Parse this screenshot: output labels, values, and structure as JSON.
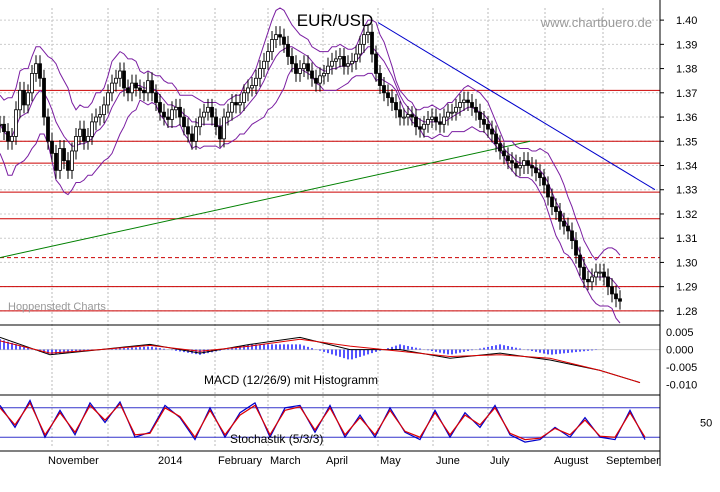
{
  "chart_data": [
    {
      "type": "candlestick",
      "title": "EUR/USD",
      "source": "www.chartbuero.de",
      "watermark": "Hoppenstedt Charts",
      "ylim": [
        1.275,
        1.405
      ],
      "y_ticks": [
        1.28,
        1.29,
        1.3,
        1.31,
        1.32,
        1.33,
        1.34,
        1.35,
        1.36,
        1.37,
        1.38,
        1.39,
        1.4
      ],
      "x_ticks": [
        "November",
        "2014",
        "February",
        "March",
        "April",
        "May",
        "June",
        "July",
        "August",
        "September"
      ],
      "grid": true,
      "price_x": [
        0,
        4,
        8,
        12,
        16,
        20,
        24,
        28,
        32,
        36,
        40,
        44,
        48,
        52,
        56,
        60,
        64,
        68,
        72,
        76,
        80,
        84,
        88,
        92,
        96,
        100,
        104,
        108,
        112,
        116,
        120,
        124,
        128,
        132,
        136,
        140,
        144,
        148,
        152,
        156,
        160,
        164,
        168,
        172,
        176,
        180,
        184,
        188,
        192,
        196,
        200,
        204,
        208,
        212,
        216,
        220,
        224,
        228,
        232,
        236,
        240,
        244,
        248,
        252,
        256,
        260,
        264,
        268,
        272,
        276,
        280,
        284,
        288,
        292,
        296,
        300,
        304,
        308,
        312,
        316,
        320,
        324,
        328,
        332,
        336,
        340,
        344,
        348,
        352,
        356,
        360,
        364,
        368,
        372,
        376,
        380,
        384,
        388,
        392,
        396,
        400,
        404,
        408,
        412,
        416,
        420,
        424,
        428,
        432,
        436,
        440,
        444,
        448,
        452,
        456,
        460,
        464,
        468,
        472,
        476,
        480,
        484,
        488,
        492,
        496,
        500,
        504,
        508,
        512,
        516,
        520,
        524,
        528,
        532,
        536,
        540,
        544,
        548,
        552,
        556,
        560,
        564,
        568,
        572,
        576,
        580,
        584,
        588,
        592,
        596,
        600,
        604,
        608,
        612,
        616,
        620,
        624,
        628,
        632,
        636,
        640,
        644
      ],
      "close": [
        1.357,
        1.354,
        1.35,
        1.352,
        1.363,
        1.371,
        1.365,
        1.37,
        1.378,
        1.382,
        1.376,
        1.36,
        1.35,
        1.345,
        1.338,
        1.347,
        1.342,
        1.338,
        1.346,
        1.352,
        1.355,
        1.35,
        1.352,
        1.358,
        1.36,
        1.361,
        1.365,
        1.37,
        1.374,
        1.376,
        1.379,
        1.372,
        1.37,
        1.374,
        1.372,
        1.371,
        1.37,
        1.375,
        1.37,
        1.366,
        1.362,
        1.36,
        1.359,
        1.363,
        1.364,
        1.36,
        1.356,
        1.353,
        1.35,
        1.356,
        1.36,
        1.362,
        1.364,
        1.36,
        1.356,
        1.351,
        1.36,
        1.362,
        1.366,
        1.365,
        1.366,
        1.37,
        1.372,
        1.373,
        1.376,
        1.38,
        1.383,
        1.387,
        1.392,
        1.394,
        1.393,
        1.39,
        1.385,
        1.382,
        1.378,
        1.38,
        1.382,
        1.379,
        1.376,
        1.374,
        1.377,
        1.378,
        1.381,
        1.383,
        1.384,
        1.385,
        1.381,
        1.382,
        1.383,
        1.386,
        1.39,
        1.394,
        1.395,
        1.386,
        1.378,
        1.373,
        1.37,
        1.368,
        1.366,
        1.363,
        1.36,
        1.36,
        1.361,
        1.36,
        1.356,
        1.355,
        1.357,
        1.359,
        1.36,
        1.358,
        1.357,
        1.36,
        1.362,
        1.362,
        1.364,
        1.366,
        1.367,
        1.366,
        1.364,
        1.362,
        1.359,
        1.357,
        1.355,
        1.353,
        1.349,
        1.346,
        1.344,
        1.342,
        1.341,
        1.339,
        1.34,
        1.342,
        1.34,
        1.339,
        1.337,
        1.335,
        1.332,
        1.327,
        1.323,
        1.321,
        1.317,
        1.315,
        1.313,
        1.309,
        1.303,
        1.298,
        1.293,
        1.292,
        1.294,
        1.296,
        1.296,
        1.294,
        1.29,
        1.287,
        1.285,
        1.284
      ],
      "bollinger_upper": [
        1.369,
        1.367,
        1.368,
        1.368,
        1.372,
        1.379,
        1.38,
        1.38,
        1.385,
        1.389,
        1.389,
        1.387,
        1.385,
        1.384,
        1.382,
        1.378,
        1.375,
        1.372,
        1.366,
        1.363,
        1.365,
        1.364,
        1.364,
        1.366,
        1.37,
        1.37,
        1.372,
        1.377,
        1.383,
        1.385,
        1.387,
        1.386,
        1.384,
        1.384,
        1.383,
        1.379,
        1.378,
        1.379,
        1.378,
        1.377,
        1.377,
        1.375,
        1.374,
        1.374,
        1.372,
        1.369,
        1.369,
        1.369,
        1.369,
        1.368,
        1.367,
        1.366,
        1.366,
        1.366,
        1.366,
        1.365,
        1.365,
        1.367,
        1.368,
        1.369,
        1.369,
        1.373,
        1.375,
        1.377,
        1.38,
        1.385,
        1.39,
        1.395,
        1.4,
        1.404,
        1.405,
        1.404,
        1.401,
        1.398,
        1.396,
        1.394,
        1.393,
        1.392,
        1.389,
        1.388,
        1.387,
        1.387,
        1.387,
        1.389,
        1.389,
        1.39,
        1.389,
        1.388,
        1.388,
        1.389,
        1.393,
        1.397,
        1.4,
        1.4,
        1.399,
        1.394,
        1.391,
        1.386,
        1.381,
        1.375,
        1.371,
        1.369,
        1.367,
        1.366,
        1.363,
        1.363,
        1.364,
        1.364,
        1.365,
        1.364,
        1.363,
        1.364,
        1.366,
        1.366,
        1.368,
        1.37,
        1.372,
        1.373,
        1.372,
        1.371,
        1.37,
        1.368,
        1.366,
        1.362,
        1.358,
        1.354,
        1.35,
        1.35,
        1.35,
        1.348,
        1.347,
        1.347,
        1.347,
        1.346,
        1.346,
        1.347,
        1.346,
        1.345,
        1.342,
        1.339,
        1.336,
        1.332,
        1.327,
        1.323,
        1.318,
        1.314,
        1.309,
        1.306,
        1.303,
        1.301,
        1.303,
        1.305,
        1.306,
        1.306,
        1.305,
        1.303
      ],
      "bollinger_middle": [
        1.357,
        1.354,
        1.352,
        1.352,
        1.356,
        1.36,
        1.361,
        1.362,
        1.366,
        1.369,
        1.371,
        1.37,
        1.367,
        1.363,
        1.358,
        1.355,
        1.352,
        1.35,
        1.348,
        1.348,
        1.349,
        1.349,
        1.35,
        1.351,
        1.354,
        1.355,
        1.357,
        1.36,
        1.364,
        1.367,
        1.37,
        1.371,
        1.372,
        1.373,
        1.373,
        1.373,
        1.372,
        1.372,
        1.372,
        1.371,
        1.369,
        1.367,
        1.365,
        1.365,
        1.364,
        1.363,
        1.361,
        1.36,
        1.358,
        1.358,
        1.357,
        1.357,
        1.357,
        1.357,
        1.357,
        1.356,
        1.357,
        1.358,
        1.359,
        1.36,
        1.361,
        1.363,
        1.365,
        1.367,
        1.369,
        1.372,
        1.375,
        1.379,
        1.382,
        1.385,
        1.387,
        1.388,
        1.389,
        1.389,
        1.388,
        1.387,
        1.386,
        1.385,
        1.383,
        1.381,
        1.38,
        1.379,
        1.379,
        1.38,
        1.38,
        1.381,
        1.381,
        1.381,
        1.382,
        1.383,
        1.385,
        1.387,
        1.389,
        1.389,
        1.387,
        1.385,
        1.383,
        1.38,
        1.377,
        1.373,
        1.369,
        1.366,
        1.364,
        1.362,
        1.36,
        1.359,
        1.358,
        1.358,
        1.358,
        1.358,
        1.358,
        1.358,
        1.359,
        1.36,
        1.361,
        1.362,
        1.363,
        1.364,
        1.364,
        1.363,
        1.362,
        1.361,
        1.359,
        1.356,
        1.353,
        1.35,
        1.347,
        1.345,
        1.344,
        1.342,
        1.341,
        1.341,
        1.341,
        1.34,
        1.339,
        1.338,
        1.336,
        1.333,
        1.329,
        1.325,
        1.322,
        1.318,
        1.315,
        1.312,
        1.308,
        1.304,
        1.3,
        1.297,
        1.295,
        1.294,
        1.294,
        1.294,
        1.294,
        1.293,
        1.291,
        1.289
      ],
      "bollinger_lower": [
        1.345,
        1.341,
        1.336,
        1.336,
        1.34,
        1.341,
        1.342,
        1.344,
        1.347,
        1.349,
        1.353,
        1.353,
        1.349,
        1.342,
        1.334,
        1.332,
        1.329,
        1.328,
        1.33,
        1.333,
        1.333,
        1.334,
        1.336,
        1.336,
        1.338,
        1.34,
        1.342,
        1.343,
        1.345,
        1.349,
        1.353,
        1.356,
        1.36,
        1.362,
        1.363,
        1.367,
        1.366,
        1.365,
        1.366,
        1.365,
        1.361,
        1.359,
        1.356,
        1.356,
        1.356,
        1.357,
        1.353,
        1.351,
        1.347,
        1.348,
        1.347,
        1.348,
        1.348,
        1.348,
        1.348,
        1.347,
        1.349,
        1.349,
        1.35,
        1.351,
        1.353,
        1.353,
        1.355,
        1.357,
        1.358,
        1.359,
        1.36,
        1.363,
        1.364,
        1.366,
        1.369,
        1.372,
        1.377,
        1.38,
        1.38,
        1.38,
        1.379,
        1.378,
        1.377,
        1.374,
        1.373,
        1.371,
        1.371,
        1.371,
        1.371,
        1.372,
        1.373,
        1.374,
        1.376,
        1.377,
        1.377,
        1.377,
        1.378,
        1.378,
        1.375,
        1.376,
        1.375,
        1.374,
        1.373,
        1.371,
        1.367,
        1.363,
        1.361,
        1.358,
        1.357,
        1.355,
        1.352,
        1.352,
        1.351,
        1.352,
        1.353,
        1.352,
        1.352,
        1.354,
        1.354,
        1.354,
        1.354,
        1.355,
        1.356,
        1.355,
        1.354,
        1.354,
        1.352,
        1.35,
        1.348,
        1.346,
        1.344,
        1.34,
        1.338,
        1.336,
        1.335,
        1.335,
        1.335,
        1.334,
        1.332,
        1.329,
        1.326,
        1.321,
        1.316,
        1.311,
        1.308,
        1.304,
        1.303,
        1.301,
        1.298,
        1.294,
        1.291,
        1.288,
        1.285,
        1.283,
        1.282,
        1.282,
        1.282,
        1.281,
        1.277,
        1.275
      ],
      "hlines_solid": [
        1.28,
        1.29,
        1.318,
        1.329,
        1.341,
        1.35,
        1.371
      ],
      "hlines_dashed": [
        1.302
      ],
      "trendlines": [
        {
          "color": "#008000",
          "from": [
            0,
            1.302
          ],
          "to": [
            530,
            1.35
          ]
        },
        {
          "color": "#0000cc",
          "from": [
            378,
            1.399
          ],
          "to": [
            655,
            1.33
          ]
        }
      ]
    },
    {
      "type": "line",
      "title": "MACD (12/26/9) mit Histogramm",
      "ylim": [
        -0.0125,
        0.0065
      ],
      "y_ticks": [
        "0.005",
        "0.000",
        "-0.005",
        "-0.010"
      ],
      "series": [
        {
          "color": "#000000",
          "x": [
            0,
            50,
            100,
            150,
            200,
            250,
            300,
            350,
            400,
            450,
            500,
            550,
            600,
            640
          ],
          "values": [
            0.0035,
            -0.0015,
            0.0,
            0.0015,
            -0.001,
            0.0015,
            0.0035,
            0.0,
            0.0,
            -0.0025,
            -0.001,
            -0.003,
            -0.006,
            -0.0095
          ]
        },
        {
          "color": "#dd0000",
          "x": [
            0,
            50,
            100,
            150,
            200,
            250,
            300,
            350,
            400,
            450,
            500,
            550,
            600,
            640
          ],
          "values": [
            0.0025,
            -0.001,
            0.0,
            0.0012,
            -0.0005,
            0.001,
            0.003,
            0.001,
            -0.0005,
            -0.002,
            -0.0015,
            -0.0025,
            -0.006,
            -0.0095
          ]
        }
      ]
    },
    {
      "type": "line",
      "title": "Stochastik (5/3/3)",
      "ylim": [
        0,
        100
      ],
      "y_ticks": [
        "50"
      ],
      "hlines": [
        20,
        80
      ],
      "series": [
        {
          "color": "#0000cc",
          "x": [
            0,
            15,
            30,
            45,
            60,
            75,
            90,
            105,
            120,
            135,
            150,
            165,
            180,
            195,
            210,
            225,
            240,
            255,
            270,
            285,
            300,
            315,
            330,
            345,
            360,
            375,
            390,
            405,
            420,
            435,
            450,
            465,
            480,
            495,
            510,
            525,
            540,
            555,
            570,
            585,
            600,
            615,
            630,
            645
          ],
          "values": [
            85,
            40,
            95,
            20,
            75,
            25,
            90,
            50,
            92,
            20,
            30,
            85,
            60,
            15,
            80,
            20,
            70,
            90,
            20,
            80,
            85,
            30,
            85,
            20,
            65,
            20,
            80,
            30,
            15,
            75,
            20,
            70,
            40,
            85,
            25,
            10,
            15,
            40,
            20,
            60,
            20,
            15,
            75,
            15
          ]
        },
        {
          "color": "#dd0000",
          "x": [
            0,
            15,
            30,
            45,
            60,
            75,
            90,
            105,
            120,
            135,
            150,
            165,
            180,
            195,
            210,
            225,
            240,
            255,
            270,
            285,
            300,
            315,
            330,
            345,
            360,
            375,
            390,
            405,
            420,
            435,
            450,
            465,
            480,
            495,
            510,
            525,
            540,
            555,
            570,
            585,
            600,
            615,
            630,
            645
          ],
          "values": [
            80,
            45,
            90,
            25,
            70,
            30,
            85,
            55,
            88,
            25,
            28,
            80,
            62,
            20,
            75,
            25,
            65,
            85,
            25,
            75,
            82,
            35,
            80,
            25,
            60,
            25,
            75,
            32,
            20,
            70,
            25,
            65,
            45,
            80,
            28,
            15,
            18,
            38,
            25,
            55,
            22,
            20,
            70,
            20
          ]
        }
      ]
    }
  ]
}
